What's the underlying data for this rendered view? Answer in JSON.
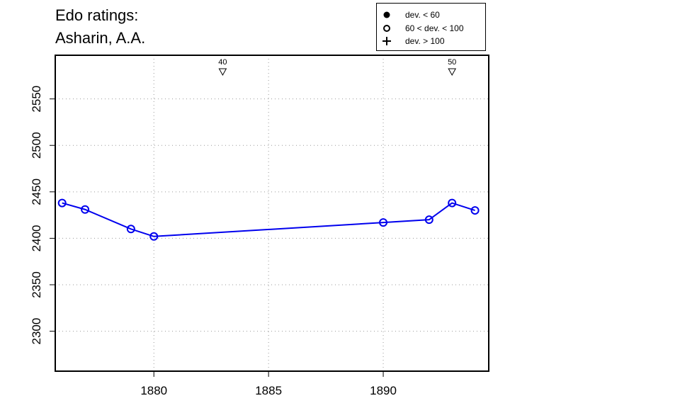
{
  "title_lines": [
    "Edo ratings:",
    "Asharin, A.A."
  ],
  "legend": {
    "placement": "top-right",
    "items": [
      {
        "label": "dev. < 60",
        "marker": "filled-circle"
      },
      {
        "label": "60 < dev. < 100",
        "marker": "open-circle"
      },
      {
        "label": "dev. > 100",
        "marker": "plus"
      }
    ]
  },
  "chart_data": {
    "type": "line",
    "xlabel": "",
    "ylabel": "",
    "xlim": [
      1875.7,
      1894.6
    ],
    "ylim": [
      2257,
      2597
    ],
    "x_ticks": [
      1880,
      1885,
      1890
    ],
    "y_ticks": [
      2300,
      2350,
      2400,
      2450,
      2500,
      2550
    ],
    "grid": true,
    "series": [
      {
        "color": "#0000ee",
        "marker": "open-circle",
        "x": [
          1876,
          1877,
          1879,
          1880,
          1890,
          1892,
          1893,
          1894
        ],
        "y": [
          2438,
          2431,
          2410,
          2402,
          2417,
          2420,
          2438,
          2430
        ]
      }
    ],
    "annotations": [
      {
        "x": 1883,
        "label": "40",
        "marker": "open-triangle-down"
      },
      {
        "x": 1893,
        "label": "50",
        "marker": "open-triangle-down"
      }
    ]
  }
}
